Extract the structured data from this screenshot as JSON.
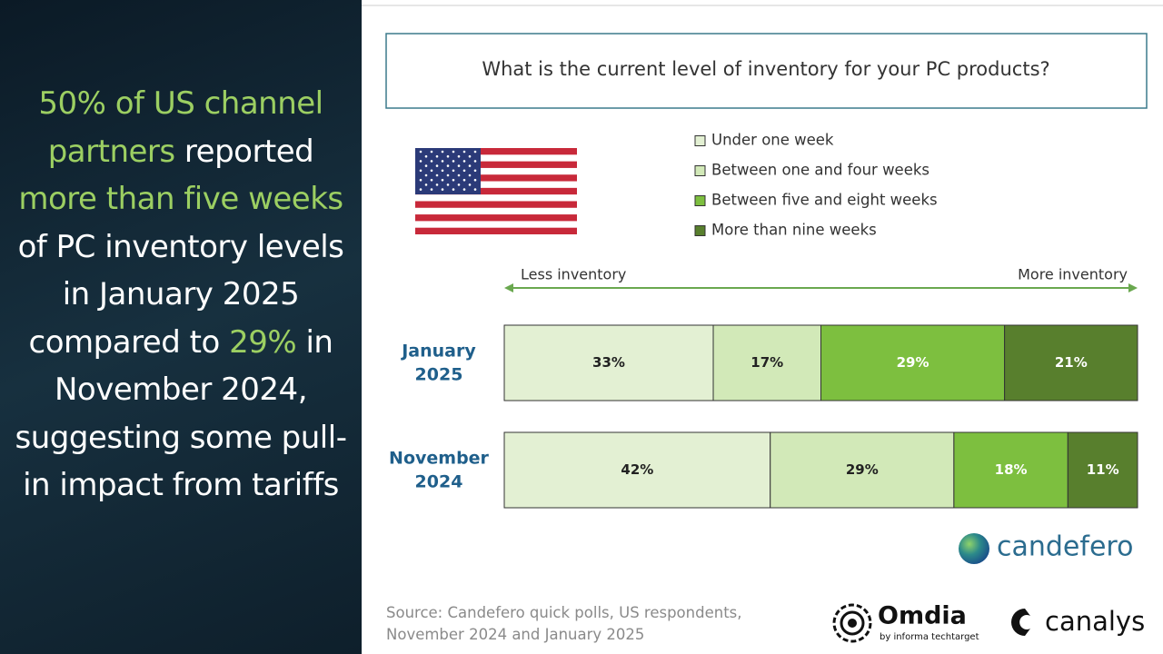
{
  "headline": [
    {
      "text": "50% of US channel partners",
      "highlight": true
    },
    {
      "text": " reported ",
      "highlight": false
    },
    {
      "text": "more than five weeks",
      "highlight": true
    },
    {
      "text": " of PC inventory levels in January 2025 compared to ",
      "highlight": false
    },
    {
      "text": "29%",
      "highlight": true
    },
    {
      "text": " in November 2024, suggesting some pull-in impact from tariffs",
      "highlight": false
    }
  ],
  "chart_data": {
    "type": "stacked-bar-horizontal",
    "title": "What is the current level of inventory for your PC products?",
    "x_arrow_labels": [
      "Less inventory",
      "More inventory"
    ],
    "categories": [
      "January 2025",
      "November 2024"
    ],
    "xlim": [
      0,
      100
    ],
    "series": [
      {
        "name": "Under one week",
        "color": "#e3f0d3",
        "label_color": "#222222",
        "values": [
          33,
          42
        ],
        "value_labels": [
          "33%",
          "42%"
        ]
      },
      {
        "name": "Between one and four weeks",
        "color": "#d2e9b8",
        "label_color": "#222222",
        "values": [
          17,
          29
        ],
        "value_labels": [
          "17%",
          "29%"
        ]
      },
      {
        "name": "Between five and eight weeks",
        "color": "#7dbf3f",
        "label_color": "#ffffff",
        "values": [
          29,
          18
        ],
        "value_labels": [
          "29%",
          "18%"
        ]
      },
      {
        "name": "More than nine weeks",
        "color": "#587f2d",
        "label_color": "#ffffff",
        "values": [
          21,
          11
        ],
        "value_labels": [
          "21%",
          "11%"
        ]
      }
    ]
  },
  "source": "Source: Candefero quick polls, US respondents, November 2024 and January 2025",
  "logos": {
    "candefero": "candefero",
    "omdia": "Omdia",
    "omdia_sub": "by informa techtarget",
    "canalys": "canalys"
  }
}
